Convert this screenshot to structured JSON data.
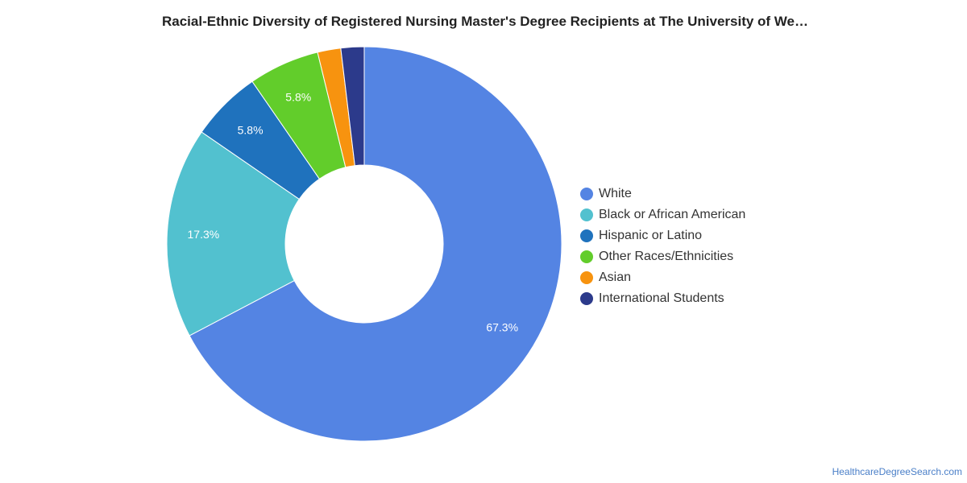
{
  "title": "Racial-Ethnic Diversity of Registered Nursing Master's Degree Recipients at The University of We…",
  "credit": "HealthcareDegreeSearch.com",
  "chart_data": {
    "type": "pie",
    "donut": true,
    "title": "Racial-Ethnic Diversity of Registered Nursing Master's Degree Recipients at The University of We…",
    "legend_position": "right",
    "slices": [
      {
        "name": "White",
        "value": 67.3,
        "label": "67.3%",
        "color": "#5484e3"
      },
      {
        "name": "Black or African American",
        "value": 17.3,
        "label": "17.3%",
        "color": "#52c1cf"
      },
      {
        "name": "Hispanic or Latino",
        "value": 5.8,
        "label": "5.8%",
        "color": "#1f72bd"
      },
      {
        "name": "Other Races/Ethnicities",
        "value": 5.8,
        "label": "5.8%",
        "color": "#62cd2b"
      },
      {
        "name": "Asian",
        "value": 1.9,
        "label": "",
        "color": "#f7930f"
      },
      {
        "name": "International Students",
        "value": 1.9,
        "label": "",
        "color": "#2c3a8b"
      }
    ]
  }
}
